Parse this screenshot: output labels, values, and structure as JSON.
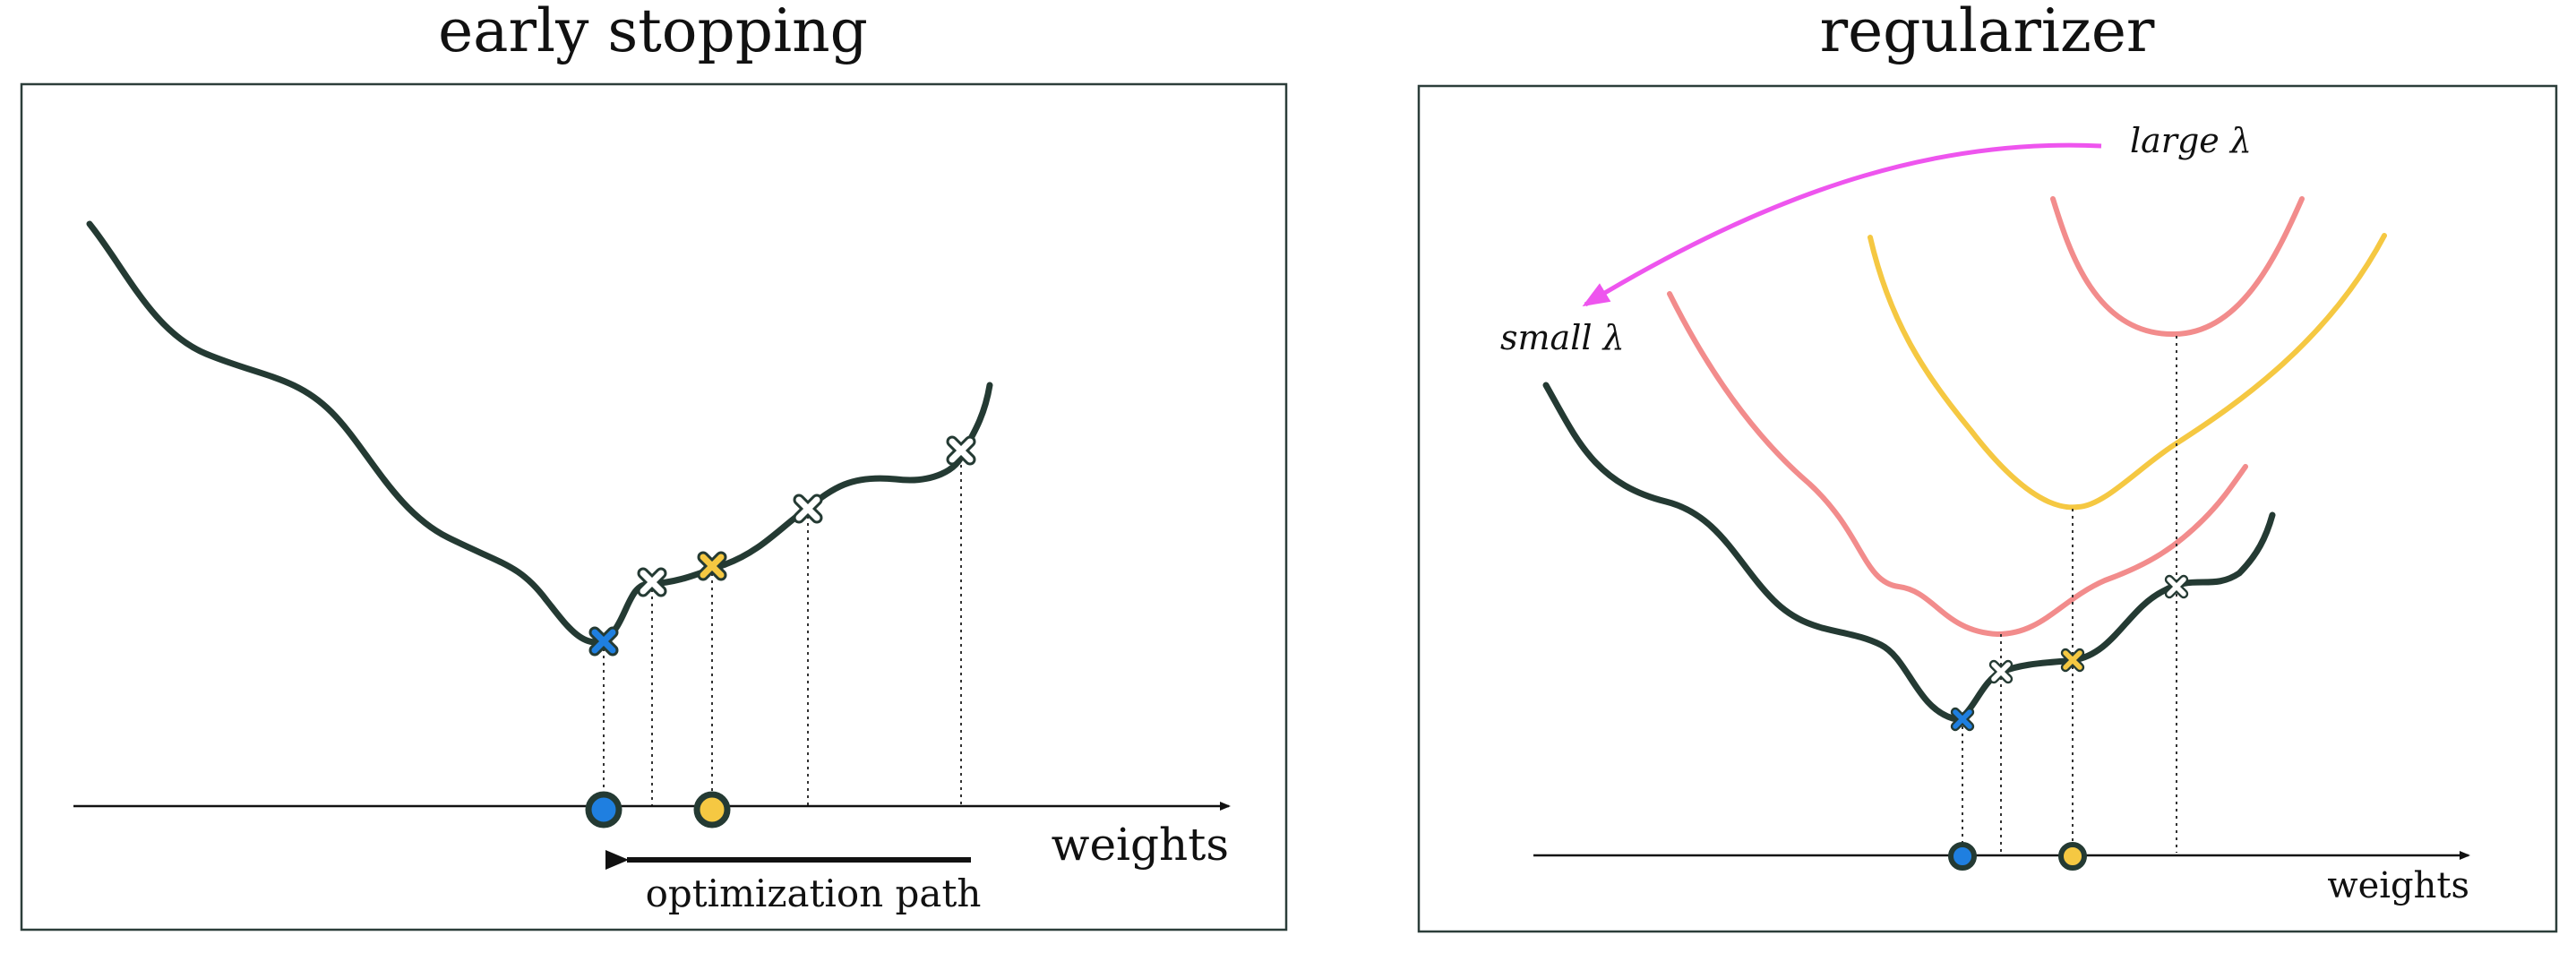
{
  "colors": {
    "frame": "#2c3e3a",
    "curve": "#243a33",
    "blue": "#1f7fe0",
    "yellow": "#f5c842",
    "pink": "#f28c8c",
    "magenta": "#ee55ee",
    "white_marker": "#ffffff"
  },
  "left_panel": {
    "title": "early stopping",
    "axis_label": "weights",
    "path_label": "optimization path"
  },
  "right_panel": {
    "title": "regularizer",
    "axis_label": "weights",
    "large_lambda_label": "large λ",
    "small_lambda_label": "small λ"
  }
}
